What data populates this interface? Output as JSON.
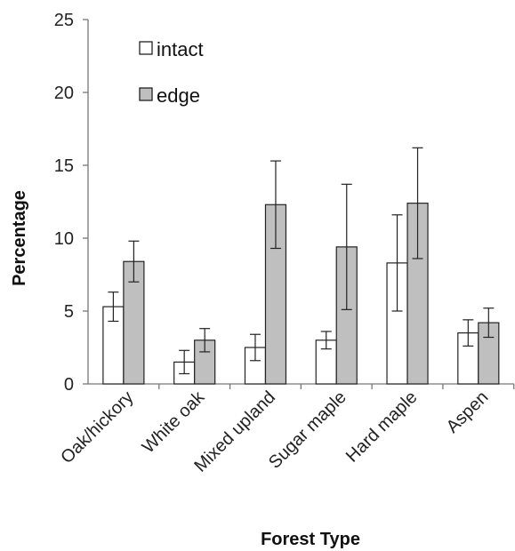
{
  "chart_data": {
    "type": "bar",
    "xlabel": "Forest Type",
    "ylabel": "Percentage",
    "ylim": [
      0,
      25
    ],
    "yticks": [
      "0",
      "5",
      "10",
      "15",
      "20",
      "25"
    ],
    "categories": [
      "Oak/hickory",
      "White oak",
      "Mixed upland",
      "Sugar maple",
      "Hard maple",
      "Aspen"
    ],
    "series": [
      {
        "name": "intact",
        "color": "#ffffff",
        "values": [
          5.3,
          1.5,
          2.5,
          3.0,
          8.3,
          3.5
        ],
        "error": [
          1.0,
          0.8,
          0.9,
          0.6,
          3.3,
          0.9
        ]
      },
      {
        "name": "edge",
        "color": "#bfbfbf",
        "values": [
          8.4,
          3.0,
          12.3,
          9.4,
          12.4,
          4.2
        ],
        "error": [
          1.4,
          0.8,
          3.0,
          4.3,
          3.8,
          1.0
        ]
      }
    ],
    "legend_position": "top-left",
    "grid": false
  }
}
